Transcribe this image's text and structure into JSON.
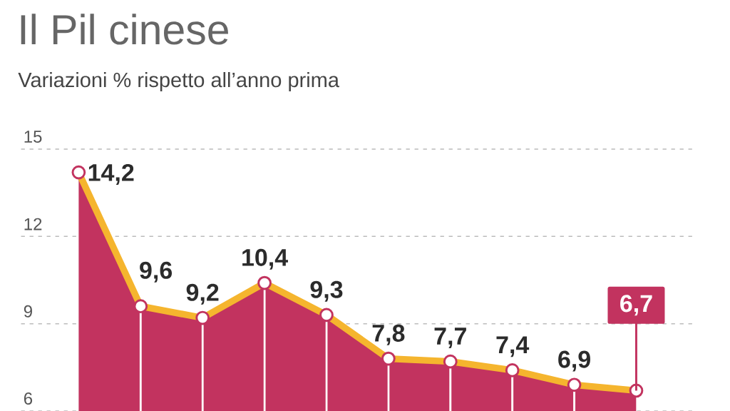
{
  "chart_data": {
    "type": "area",
    "title": "Il Pil cinese",
    "subtitle": "Variazioni % rispetto all’anno prima",
    "categories": [
      null,
      null,
      null,
      null,
      null,
      null,
      null,
      null,
      null,
      null
    ],
    "series": [
      {
        "color": "#c2335f",
        "values": [
          14.2,
          9.6,
          9.2,
          10.4,
          9.3,
          7.8,
          7.7,
          7.4,
          6.9,
          6.7
        ],
        "value_labels": [
          "14,2",
          "9,6",
          "9,2",
          "10,4",
          "9,3",
          "7,8",
          "7,7",
          "7,4",
          "6,9",
          "6,7"
        ]
      }
    ],
    "ylim": [
      6,
      15
    ],
    "yticks": [
      6,
      9,
      12,
      15
    ],
    "grid": "y",
    "marker": "circle",
    "line_style": "solid"
  }
}
